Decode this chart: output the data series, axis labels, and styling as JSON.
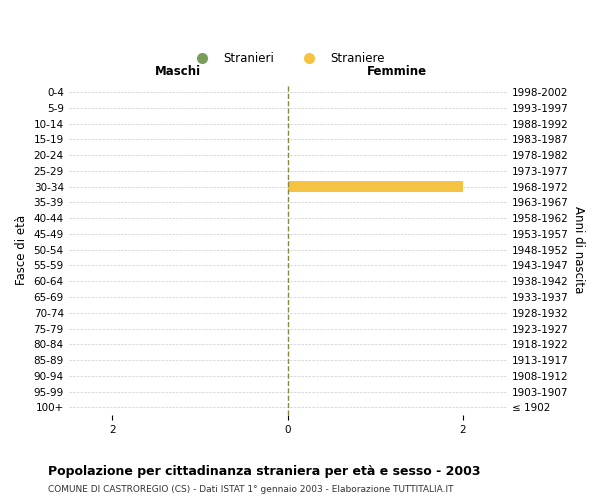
{
  "age_groups": [
    "100+",
    "95-99",
    "90-94",
    "85-89",
    "80-84",
    "75-79",
    "70-74",
    "65-69",
    "60-64",
    "55-59",
    "50-54",
    "45-49",
    "40-44",
    "35-39",
    "30-34",
    "25-29",
    "20-24",
    "15-19",
    "10-14",
    "5-9",
    "0-4"
  ],
  "birth_years": [
    "≤ 1902",
    "1903-1907",
    "1908-1912",
    "1913-1917",
    "1918-1922",
    "1923-1927",
    "1928-1932",
    "1933-1937",
    "1938-1942",
    "1943-1947",
    "1948-1952",
    "1953-1957",
    "1958-1962",
    "1963-1967",
    "1968-1972",
    "1973-1977",
    "1978-1982",
    "1983-1987",
    "1988-1992",
    "1993-1997",
    "1998-2002"
  ],
  "maschi_stranieri": [
    0,
    0,
    0,
    0,
    0,
    0,
    0,
    0,
    0,
    0,
    0,
    0,
    0,
    0,
    0,
    0,
    0,
    0,
    0,
    0,
    0
  ],
  "femmine_straniere": [
    0,
    0,
    0,
    0,
    0,
    0,
    0,
    0,
    0,
    0,
    0,
    0,
    0,
    0,
    2,
    0,
    0,
    0,
    0,
    0,
    0
  ],
  "xlim": 2.5,
  "color_maschi": "#7a9e5a",
  "color_femmine": "#f5c242",
  "title_main": "Popolazione per cittadinanza straniera per età e sesso - 2003",
  "title_sub": "COMUNE DI CASTROREGIO (CS) - Dati ISTAT 1° gennaio 2003 - Elaborazione TUTTITALIA.IT",
  "label_maschi": "Stranieri",
  "label_femmine": "Straniere",
  "ylabel_left": "Fasce di età",
  "ylabel_right": "Anni di nascita",
  "section_maschi": "Maschi",
  "section_femmine": "Femmine",
  "background_color": "#ffffff",
  "grid_color": "#cccccc",
  "bar_height": 0.7,
  "axis_line_color": "#888844",
  "tick_fontsize": 7.5,
  "label_fontsize": 8.5
}
